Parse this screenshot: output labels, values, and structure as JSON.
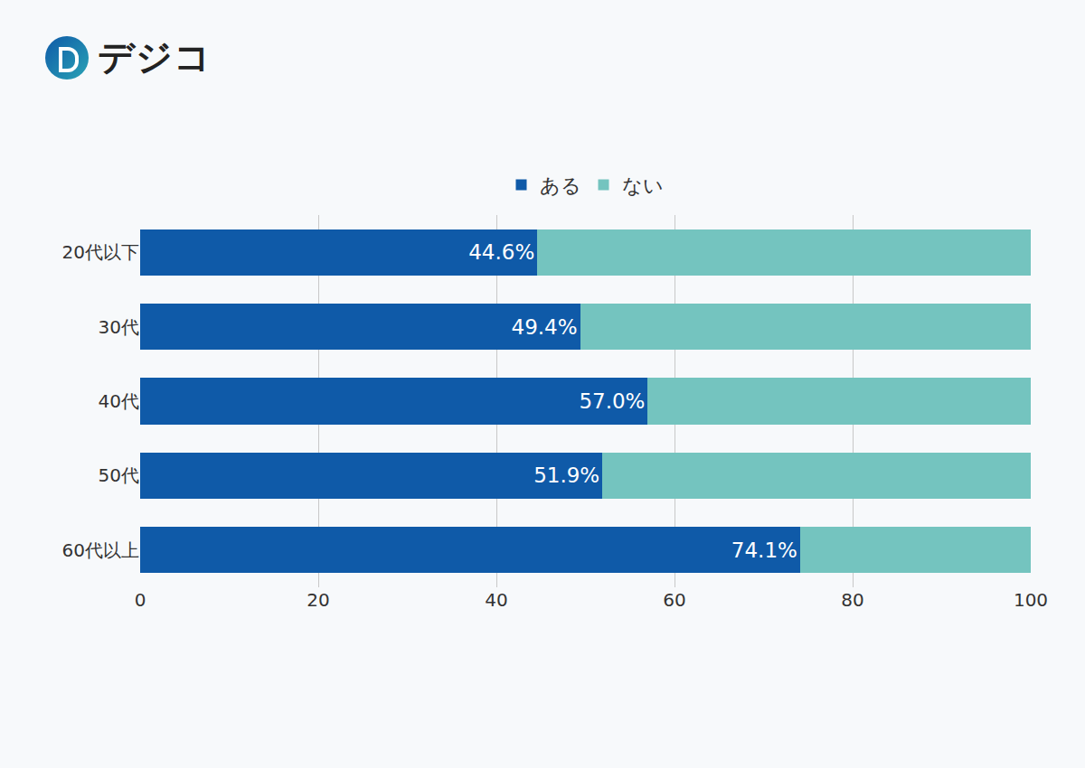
{
  "logo": "デジコ",
  "chart_data": {
    "type": "bar",
    "orientation": "horizontal",
    "stacked": true,
    "categories": [
      "20代以下",
      "30代",
      "40代",
      "50代",
      "60代以上"
    ],
    "series": [
      {
        "name": "ある",
        "color": "#0f5aa8",
        "values": [
          44.6,
          49.4,
          57.0,
          51.9,
          74.1
        ],
        "value_labels": [
          "44.6%",
          "49.4%",
          "57.0%",
          "51.9%",
          "74.1%"
        ],
        "data_labels": true
      },
      {
        "name": "ない",
        "color": "#74c4bf",
        "values": [
          55.4,
          50.6,
          43.0,
          48.1,
          25.9
        ],
        "data_labels": false
      }
    ],
    "xlim": [
      0,
      100
    ],
    "xticks": [
      0,
      20,
      40,
      60,
      80,
      100
    ],
    "grid": true,
    "legend": "top"
  }
}
